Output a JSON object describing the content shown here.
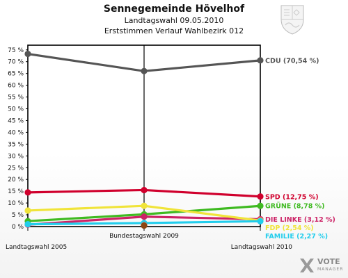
{
  "header": {
    "title": "Sennegemeinde Hövelhof",
    "subtitle": "Landtagswahl 09.05.2010",
    "subtitle2": "Erststimmen Verlauf Wahlbezirk 012"
  },
  "brand": {
    "name": "VOTE",
    "sub": "MANAGER"
  },
  "chart_data": {
    "type": "line",
    "categories": [
      "Landtagswahl 2005",
      "Bundestagswahl 2009",
      "Landtagswahl 2010"
    ],
    "ylim": [
      0,
      77
    ],
    "yticks": [
      "0 %",
      "5 %",
      "10 %",
      "15 %",
      "20 %",
      "25 %",
      "30 %",
      "35 %",
      "40 %",
      "45 %",
      "50 %",
      "55 %",
      "60 %",
      "65 %",
      "70 %",
      "75 %"
    ],
    "grid": false,
    "series": [
      {
        "name": "CDU (70,54 %)",
        "color": "#555555",
        "values": [
          73.3,
          66.0,
          70.54
        ]
      },
      {
        "name": "SPD (12,75 %)",
        "color": "#d0002d",
        "values": [
          14.5,
          15.5,
          12.75
        ]
      },
      {
        "name": "GRÜNE (8,78 %)",
        "color": "#3fba21",
        "values": [
          2.3,
          5.2,
          8.78
        ]
      },
      {
        "name": "DIE LINKE (3,12 %)",
        "color": "#cc2266",
        "values": [
          0.8,
          4.2,
          3.12
        ]
      },
      {
        "name": "FDP (2,54 %)",
        "color": "#f0e43a",
        "values": [
          6.8,
          8.8,
          2.54
        ]
      },
      {
        "name": "FAMILIE (2,27 %)",
        "color": "#22cdec",
        "values": [
          1.0,
          1.5,
          2.27
        ]
      },
      {
        "name": "",
        "color": "#999999",
        "values": [
          null,
          0.7,
          null
        ]
      },
      {
        "name": "",
        "color": "#8b4513",
        "values": [
          null,
          0.4,
          null
        ]
      }
    ]
  }
}
